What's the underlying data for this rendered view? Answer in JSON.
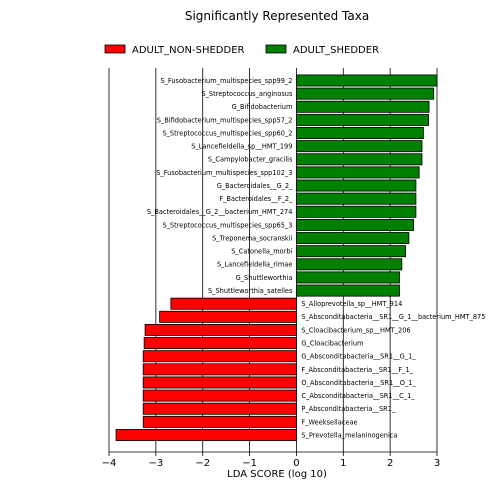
{
  "chart_data": {
    "type": "bar",
    "orientation": "horizontal",
    "title": "Significantly Represented Taxa",
    "xlabel": "LDA SCORE (log 10)",
    "ylabel": "",
    "xlim": [
      -4,
      3
    ],
    "xticks": [
      -4,
      -3,
      -2,
      -1,
      0,
      1,
      2,
      3
    ],
    "grid": true,
    "legend_position": "top",
    "series": [
      {
        "name": "ADULT_NON-SHEDDER",
        "color": "#ff0000"
      },
      {
        "name": "ADULT_SHEDDER",
        "color": "#008000"
      }
    ],
    "bars": [
      {
        "label": "S_Fusobacterium_multispecies_spp99_2",
        "value": 3.0,
        "group": "ADULT_SHEDDER"
      },
      {
        "label": "S_Streptococcus_anginosus",
        "value": 2.93,
        "group": "ADULT_SHEDDER"
      },
      {
        "label": "G_Bifidobacterium",
        "value": 2.83,
        "group": "ADULT_SHEDDER"
      },
      {
        "label": "S_Bifidobacterium_multispecies_spp57_2",
        "value": 2.82,
        "group": "ADULT_SHEDDER"
      },
      {
        "label": "S_Streptococcus_multispecies_spp60_2",
        "value": 2.71,
        "group": "ADULT_SHEDDER"
      },
      {
        "label": "S_Lancefieldella_sp__HMT_199",
        "value": 2.68,
        "group": "ADULT_SHEDDER"
      },
      {
        "label": "S_Campylobacter_gracilis",
        "value": 2.68,
        "group": "ADULT_SHEDDER"
      },
      {
        "label": "S_Fusobacterium_multispecies_spp102_3",
        "value": 2.62,
        "group": "ADULT_SHEDDER"
      },
      {
        "label": "G_Bacteroidales__G_2_",
        "value": 2.55,
        "group": "ADULT_SHEDDER"
      },
      {
        "label": "F_Bacteroidales__F_2_",
        "value": 2.55,
        "group": "ADULT_SHEDDER"
      },
      {
        "label": "S_Bacteroidales__G_2__bacterium_HMT_274",
        "value": 2.55,
        "group": "ADULT_SHEDDER"
      },
      {
        "label": "S_Streptococcus_multispecies_spp65_3",
        "value": 2.5,
        "group": "ADULT_SHEDDER"
      },
      {
        "label": "S_Treponema_socranskii",
        "value": 2.4,
        "group": "ADULT_SHEDDER"
      },
      {
        "label": "S_Catonella_morbi",
        "value": 2.33,
        "group": "ADULT_SHEDDER"
      },
      {
        "label": "S_Lancefieldella_rimae",
        "value": 2.25,
        "group": "ADULT_SHEDDER"
      },
      {
        "label": "G_Shuttleworthia",
        "value": 2.2,
        "group": "ADULT_SHEDDER"
      },
      {
        "label": "S_Shuttleworthia_satelles",
        "value": 2.2,
        "group": "ADULT_SHEDDER"
      },
      {
        "label": "S_Alloprevotella_sp__HMT_914",
        "value": -2.68,
        "group": "ADULT_NON-SHEDDER"
      },
      {
        "label": "S_Absconditabacteria__SR1__G_1__bacterium_HMT_875",
        "value": -2.92,
        "group": "ADULT_NON-SHEDDER"
      },
      {
        "label": "S_Cloacibacterium_sp__HMT_206",
        "value": -3.23,
        "group": "ADULT_NON-SHEDDER"
      },
      {
        "label": "G_Cloacibacterium",
        "value": -3.25,
        "group": "ADULT_NON-SHEDDER"
      },
      {
        "label": "G_Absconditabacteria__SR1__G_1_",
        "value": -3.27,
        "group": "ADULT_NON-SHEDDER"
      },
      {
        "label": "F_Absconditabacteria__SR1__F_1_",
        "value": -3.27,
        "group": "ADULT_NON-SHEDDER"
      },
      {
        "label": "O_Absconditabacteria__SR1__O_1_",
        "value": -3.27,
        "group": "ADULT_NON-SHEDDER"
      },
      {
        "label": "C_Absconditabacteria__SR1__C_1_",
        "value": -3.27,
        "group": "ADULT_NON-SHEDDER"
      },
      {
        "label": "P_Absconditabacteria__SR1_",
        "value": -3.27,
        "group": "ADULT_NON-SHEDDER"
      },
      {
        "label": "F_Weeksellaceae",
        "value": -3.27,
        "group": "ADULT_NON-SHEDDER"
      },
      {
        "label": "S_Prevotella_melaninogenica",
        "value": -3.85,
        "group": "ADULT_NON-SHEDDER"
      }
    ]
  }
}
